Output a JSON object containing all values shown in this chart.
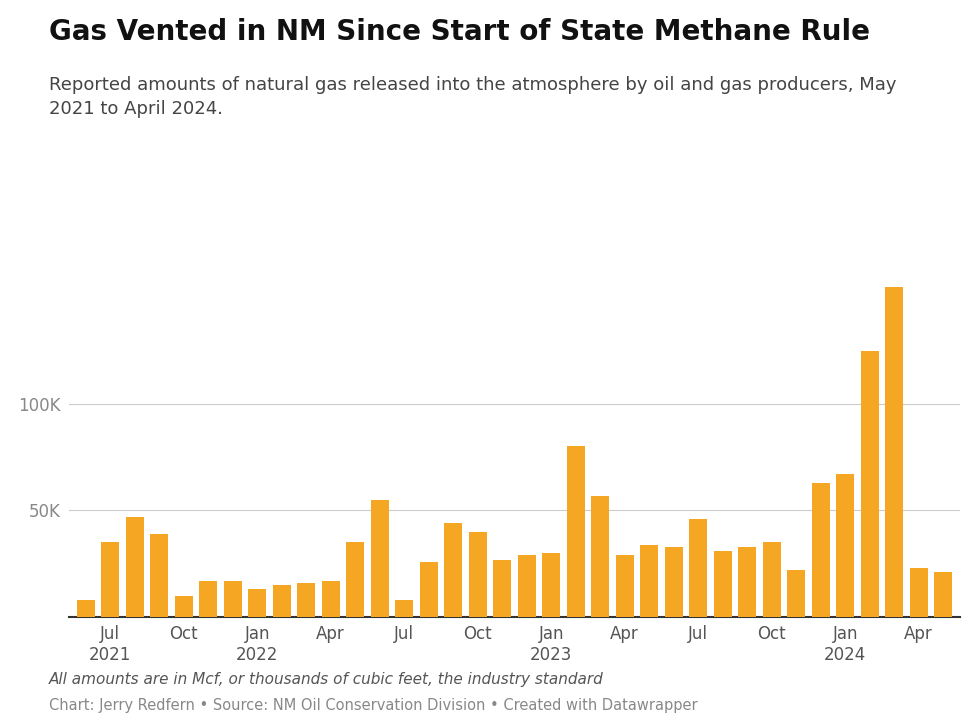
{
  "title": "Gas Vented in NM Since Start of State Methane Rule",
  "subtitle": "Reported amounts of natural gas released into the atmosphere by oil and gas producers, May\n2021 to April 2024.",
  "footnote_italic": "All amounts are in Mcf, or thousands of cubic feet, the industry standard",
  "footnote_plain": "Chart: Jerry Redfern • Source: NM Oil Conservation Division • Created with Datawrapper",
  "bar_color": "#F5A623",
  "background_color": "#FFFFFF",
  "values": [
    8000,
    35000,
    47000,
    39000,
    10000,
    17000,
    17000,
    13000,
    15000,
    16000,
    17000,
    35000,
    55000,
    8000,
    26000,
    44000,
    40000,
    27000,
    29000,
    30000,
    80000,
    57000,
    29000,
    34000,
    33000,
    46000,
    31000,
    33000,
    35000,
    22000,
    63000,
    67000,
    125000,
    155000,
    23000,
    21000
  ],
  "tick_positions": [
    1,
    4,
    7,
    10,
    13,
    16,
    19,
    22,
    25,
    28,
    31,
    34
  ],
  "tick_labels": [
    "Jul\n2021",
    "Oct",
    "Jan\n2022",
    "Apr",
    "Jul",
    "Oct",
    "Jan\n2023",
    "Apr",
    "Jul",
    "Oct",
    "Jan\n2024",
    "Apr"
  ],
  "ylim": [
    0,
    160000
  ],
  "yticks": [
    50000,
    100000
  ],
  "ytick_labels": [
    "50K",
    "100K"
  ],
  "grid_color": "#CCCCCC",
  "title_fontsize": 20,
  "subtitle_fontsize": 13,
  "tick_fontsize": 12,
  "footnote_fontsize": 11,
  "footnote2_fontsize": 10.5
}
